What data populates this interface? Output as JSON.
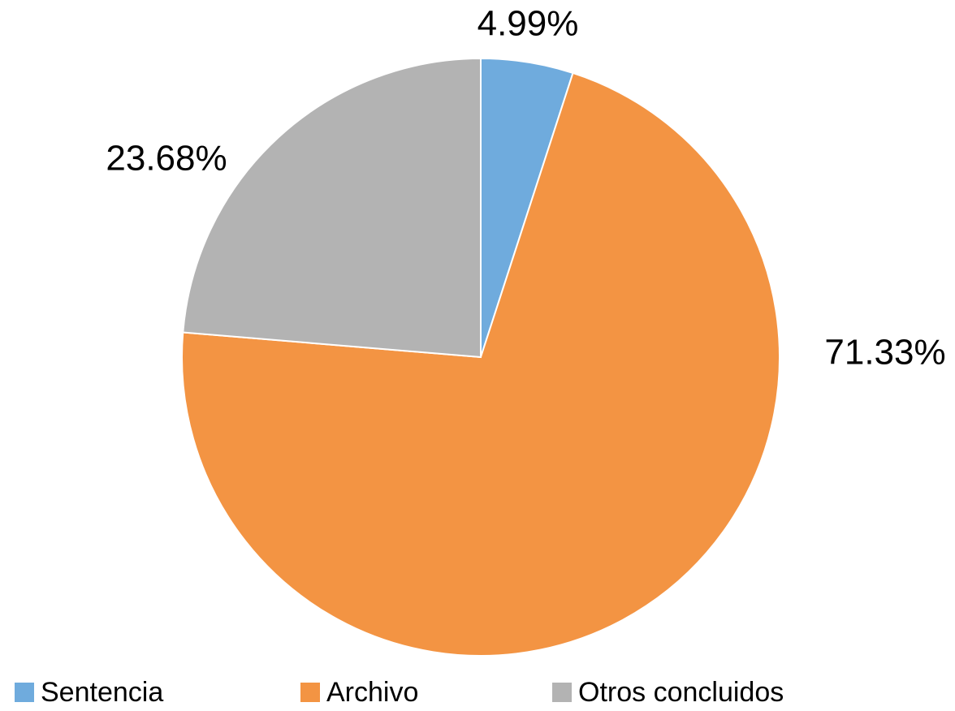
{
  "chart_data": {
    "type": "pie",
    "categories": [
      "Sentencia",
      "Archivo",
      "Otros concluidos"
    ],
    "values": [
      4.99,
      71.33,
      23.68
    ],
    "value_labels": [
      "4.99%",
      "71.33%",
      "23.68%"
    ],
    "colors": [
      "#6fabdd",
      "#f39443",
      "#b3b3b3"
    ],
    "legend": "bottom"
  }
}
